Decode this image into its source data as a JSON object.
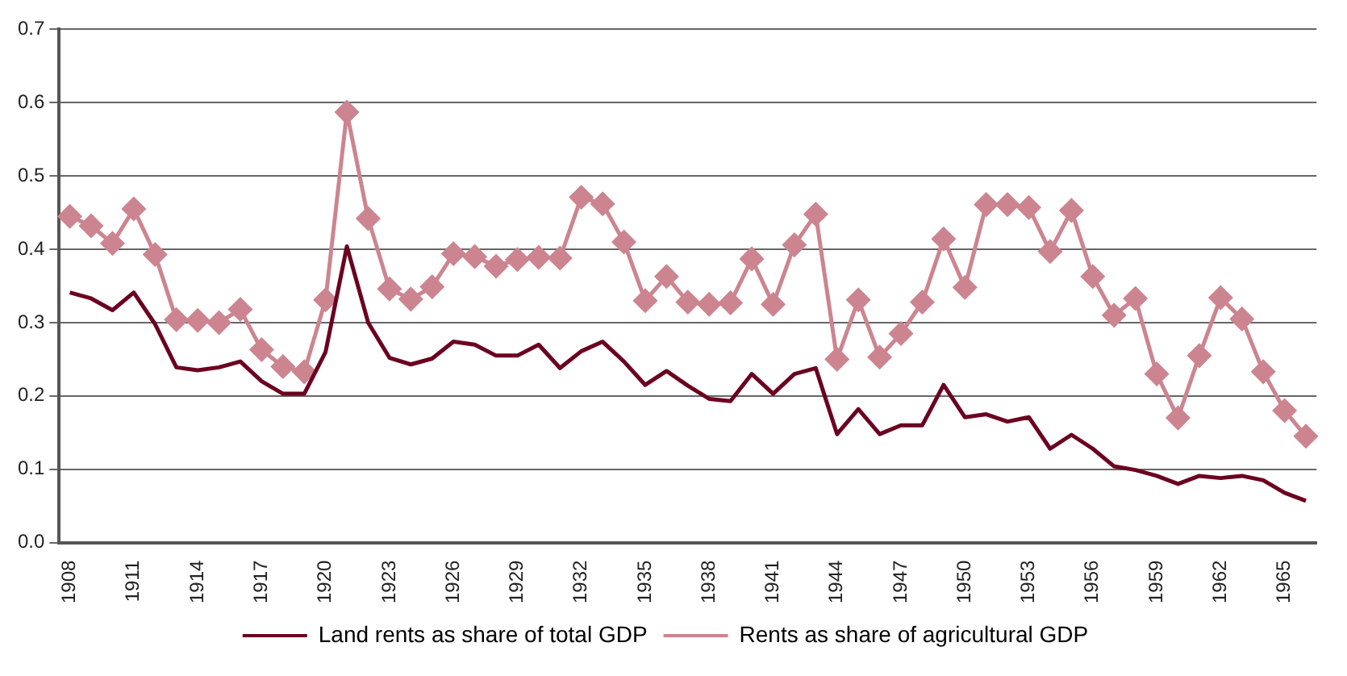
{
  "chart_data": {
    "type": "line",
    "categories": [
      "1908",
      null,
      null,
      "1911",
      null,
      null,
      "1914",
      null,
      null,
      "1917",
      null,
      null,
      "1920",
      null,
      null,
      "1923",
      null,
      null,
      "1926",
      null,
      null,
      "1929",
      null,
      null,
      "1932",
      null,
      null,
      "1935",
      null,
      null,
      "1938",
      null,
      null,
      "1941",
      null,
      null,
      "1944",
      null,
      null,
      "1947",
      null,
      null,
      "1950",
      null,
      null,
      "1953",
      null,
      null,
      "1956",
      null,
      null,
      "1959",
      null,
      null,
      "1962",
      null,
      null,
      "1965",
      null
    ],
    "series": [
      {
        "name": "Land rents as share of total GDP",
        "color": "#6b0020",
        "marker": "none",
        "values": [
          0.341,
          0.333,
          0.317,
          0.341,
          0.298,
          0.239,
          0.235,
          0.239,
          0.247,
          0.22,
          0.203,
          0.203,
          0.26,
          0.404,
          0.3,
          0.252,
          0.243,
          0.251,
          0.274,
          0.27,
          0.255,
          0.255,
          0.27,
          0.238,
          0.261,
          0.274,
          0.247,
          0.215,
          0.234,
          0.214,
          0.196,
          0.193,
          0.23,
          0.203,
          0.23,
          0.238,
          0.148,
          0.182,
          0.148,
          0.16,
          0.16,
          0.215,
          0.171,
          0.175,
          0.165,
          0.171,
          0.128,
          0.147,
          0.128,
          0.104,
          0.099,
          0.091,
          0.08,
          0.091,
          0.088,
          0.091,
          0.085,
          0.068,
          0.057
        ]
      },
      {
        "name": "Rents as share of agricultural GDP",
        "color": "#cc8590",
        "marker": "diamond",
        "values": [
          0.445,
          0.432,
          0.408,
          0.455,
          0.393,
          0.304,
          0.303,
          0.3,
          0.318,
          0.263,
          0.24,
          0.233,
          0.331,
          0.587,
          0.442,
          0.346,
          0.332,
          0.349,
          0.394,
          0.39,
          0.377,
          0.386,
          0.389,
          0.388,
          0.471,
          0.462,
          0.41,
          0.33,
          0.363,
          0.328,
          0.325,
          0.327,
          0.387,
          0.325,
          0.406,
          0.448,
          0.25,
          0.331,
          0.253,
          0.285,
          0.328,
          0.414,
          0.348,
          0.461,
          0.461,
          0.457,
          0.397,
          0.453,
          0.363,
          0.31,
          0.333,
          0.23,
          0.17,
          0.255,
          0.334,
          0.305,
          0.233,
          0.18,
          0.145
        ]
      }
    ],
    "ylim": [
      0,
      0.7
    ],
    "yticks": [
      {
        "value": 0,
        "label": "0.0"
      },
      0.1,
      0.2,
      0.3,
      0.4,
      0.5,
      0.6,
      0.7
    ],
    "grid": "y",
    "line_style": "solid",
    "legend": "bottom"
  }
}
